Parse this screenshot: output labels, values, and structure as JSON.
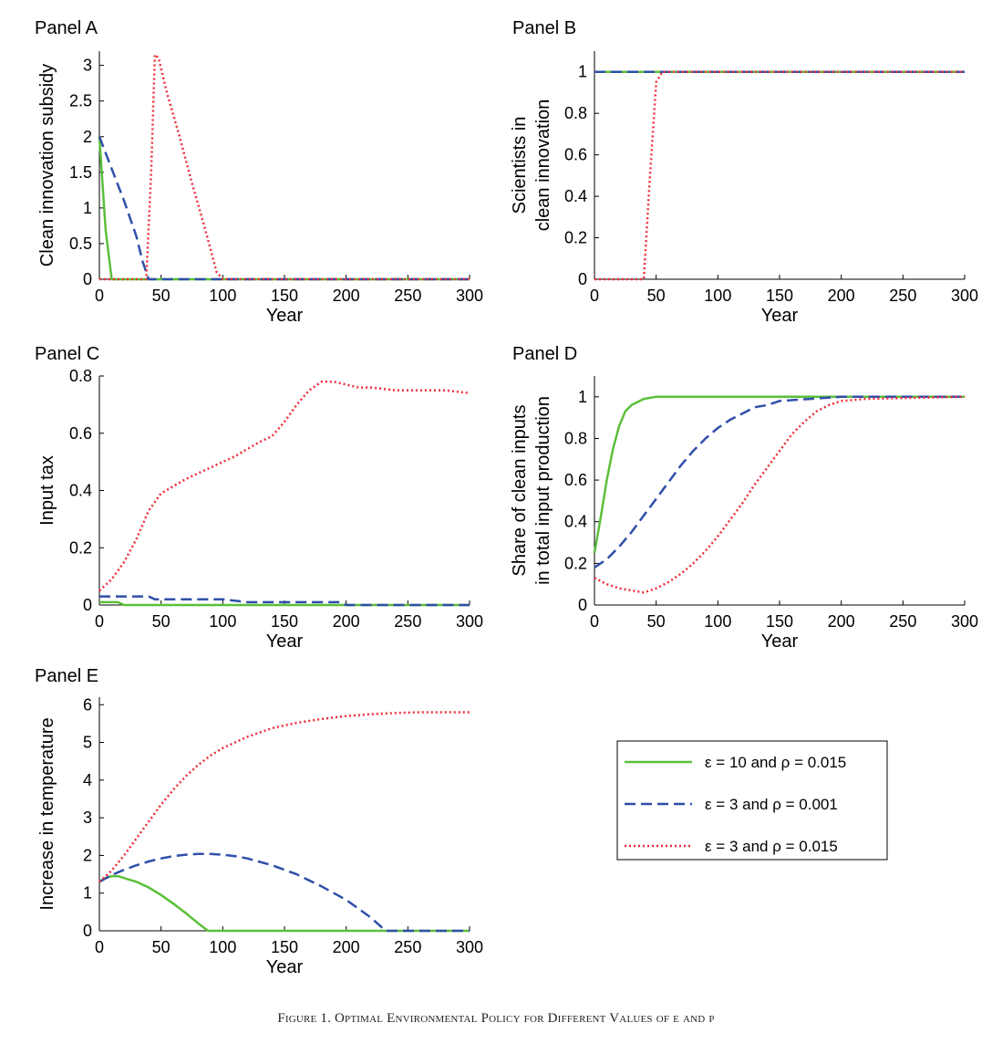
{
  "figure": {
    "caption": "Figure 1. Optimal Environmental Policy for Different Values of ε and ρ"
  },
  "colors": {
    "green": "#5bbf3a",
    "blue": "#2f4fa8",
    "red": "#ee2d3a",
    "axis": "#000000"
  },
  "legend": {
    "entries": [
      {
        "series": "eps10",
        "label": "ε = 10 and ρ = 0.015",
        "style": "solid"
      },
      {
        "series": "eps3_low",
        "label": "ε = 3 and ρ = 0.001",
        "style": "dashed"
      },
      {
        "series": "eps3_high",
        "label": "ε = 3 and ρ = 0.015",
        "style": "dotted"
      }
    ]
  },
  "chart_data": [
    {
      "id": "A",
      "type": "line",
      "title": "Panel A",
      "xlabel": "Year",
      "ylabel": [
        "Clean innovation subsidy"
      ],
      "xlim": [
        0,
        300
      ],
      "ylim": [
        0,
        3.2
      ],
      "xticks": [
        0,
        50,
        100,
        150,
        200,
        250,
        300
      ],
      "yticks": [
        0,
        0.5,
        1,
        1.5,
        2,
        2.5,
        3
      ],
      "yticklabels": [
        "0",
        "0.5",
        "1",
        "1.5",
        "2",
        "2.5",
        "3"
      ],
      "series": [
        {
          "name": "ε = 10 and ρ = 0.015",
          "key": "eps10",
          "x": [
            0,
            5,
            10,
            300
          ],
          "y": [
            2.0,
            0.7,
            0,
            0
          ]
        },
        {
          "name": "ε = 3 and ρ = 0.001",
          "key": "eps3_low",
          "x": [
            0,
            10,
            20,
            30,
            35,
            40,
            300
          ],
          "y": [
            2.0,
            1.55,
            1.1,
            0.6,
            0.25,
            0,
            0
          ]
        },
        {
          "name": "ε = 3 and ρ = 0.015",
          "key": "eps3_high",
          "x": [
            0,
            38,
            42,
            45,
            48,
            55,
            65,
            75,
            85,
            95,
            100,
            300
          ],
          "y": [
            0,
            0,
            1.5,
            3.15,
            3.1,
            2.6,
            2.0,
            1.35,
            0.75,
            0.1,
            0,
            0
          ]
        }
      ]
    },
    {
      "id": "B",
      "type": "line",
      "title": "Panel B",
      "xlabel": "Year",
      "ylabel": [
        "Scientists in",
        "clean innovation"
      ],
      "xlim": [
        0,
        300
      ],
      "ylim": [
        0,
        1.1
      ],
      "xticks": [
        0,
        50,
        100,
        150,
        200,
        250,
        300
      ],
      "yticks": [
        0,
        0.2,
        0.4,
        0.6,
        0.8,
        1
      ],
      "yticklabels": [
        "0",
        "0.2",
        "0.4",
        "0.6",
        "0.8",
        "1"
      ],
      "series": [
        {
          "name": "ε = 10 and ρ = 0.015",
          "key": "eps10",
          "x": [
            0,
            300
          ],
          "y": [
            1,
            1
          ]
        },
        {
          "name": "ε = 3 and ρ = 0.001",
          "key": "eps3_low",
          "x": [
            0,
            300
          ],
          "y": [
            1,
            1
          ]
        },
        {
          "name": "ε = 3 and ρ = 0.015",
          "key": "eps3_high",
          "x": [
            0,
            40,
            45,
            50,
            55,
            300
          ],
          "y": [
            0,
            0,
            0.5,
            0.95,
            1,
            1
          ]
        }
      ]
    },
    {
      "id": "C",
      "type": "line",
      "title": "Panel C",
      "xlabel": "Year",
      "ylabel": [
        "Input tax"
      ],
      "xlim": [
        0,
        300
      ],
      "ylim": [
        0,
        0.8
      ],
      "xticks": [
        0,
        50,
        100,
        150,
        200,
        250,
        300
      ],
      "yticks": [
        0,
        0.2,
        0.4,
        0.6,
        0.8
      ],
      "yticklabels": [
        "0",
        "0.2",
        "0.4",
        "0.6",
        "0.8"
      ],
      "series": [
        {
          "name": "ε = 10 and ρ = 0.015",
          "key": "eps10",
          "x": [
            0,
            15,
            20,
            300
          ],
          "y": [
            0.01,
            0.01,
            0,
            0
          ]
        },
        {
          "name": "ε = 3 and ρ = 0.001",
          "key": "eps3_low",
          "x": [
            0,
            40,
            45,
            100,
            120,
            195,
            200,
            300
          ],
          "y": [
            0.03,
            0.03,
            0.02,
            0.02,
            0.01,
            0.01,
            0,
            0
          ]
        },
        {
          "name": "ε = 3 and ρ = 0.015",
          "key": "eps3_high",
          "x": [
            0,
            10,
            20,
            30,
            40,
            50,
            70,
            90,
            110,
            130,
            140,
            150,
            160,
            170,
            180,
            190,
            200,
            210,
            220,
            240,
            260,
            280,
            300
          ],
          "y": [
            0.05,
            0.09,
            0.15,
            0.23,
            0.33,
            0.39,
            0.44,
            0.48,
            0.52,
            0.57,
            0.59,
            0.64,
            0.7,
            0.75,
            0.78,
            0.78,
            0.77,
            0.76,
            0.76,
            0.75,
            0.75,
            0.75,
            0.74
          ]
        }
      ]
    },
    {
      "id": "D",
      "type": "line",
      "title": "Panel D",
      "xlabel": "Year",
      "ylabel": [
        "Share of clean inputs",
        "in total input production"
      ],
      "xlim": [
        0,
        300
      ],
      "ylim": [
        0,
        1.1
      ],
      "xticks": [
        0,
        50,
        100,
        150,
        200,
        250,
        300
      ],
      "yticks": [
        0,
        0.2,
        0.4,
        0.6,
        0.8,
        1
      ],
      "yticklabels": [
        "0",
        "0.2",
        "0.4",
        "0.6",
        "0.8",
        "1"
      ],
      "series": [
        {
          "name": "ε = 10 and ρ = 0.015",
          "key": "eps10",
          "x": [
            0,
            5,
            10,
            15,
            20,
            25,
            30,
            40,
            50,
            55,
            300
          ],
          "y": [
            0.25,
            0.42,
            0.6,
            0.75,
            0.86,
            0.93,
            0.96,
            0.99,
            1.0,
            1.0,
            1.0
          ]
        },
        {
          "name": "ε = 3 and ρ = 0.001",
          "key": "eps3_low",
          "x": [
            0,
            10,
            20,
            30,
            40,
            50,
            60,
            70,
            80,
            90,
            100,
            110,
            120,
            130,
            140,
            150,
            175,
            200,
            300
          ],
          "y": [
            0.18,
            0.22,
            0.28,
            0.35,
            0.43,
            0.51,
            0.59,
            0.67,
            0.74,
            0.8,
            0.85,
            0.89,
            0.92,
            0.95,
            0.96,
            0.98,
            0.99,
            1.0,
            1.0
          ]
        },
        {
          "name": "ε = 3 and ρ = 0.015",
          "key": "eps3_high",
          "x": [
            0,
            10,
            20,
            30,
            40,
            50,
            60,
            70,
            80,
            90,
            100,
            110,
            120,
            130,
            140,
            150,
            160,
            170,
            180,
            190,
            200,
            220,
            300
          ],
          "y": [
            0.13,
            0.1,
            0.08,
            0.07,
            0.06,
            0.08,
            0.11,
            0.15,
            0.2,
            0.26,
            0.33,
            0.41,
            0.49,
            0.58,
            0.66,
            0.74,
            0.82,
            0.88,
            0.93,
            0.96,
            0.98,
            0.99,
            1.0
          ]
        }
      ]
    },
    {
      "id": "E",
      "type": "line",
      "title": "Panel E",
      "xlabel": "Year",
      "ylabel": [
        "Increase in temperature"
      ],
      "xlim": [
        0,
        300
      ],
      "ylim": [
        0,
        6.2
      ],
      "xticks": [
        0,
        50,
        100,
        150,
        200,
        250,
        300
      ],
      "yticks": [
        0,
        1,
        2,
        3,
        4,
        5,
        6
      ],
      "yticklabels": [
        "0",
        "1",
        "2",
        "3",
        "4",
        "5",
        "6"
      ],
      "series": [
        {
          "name": "ε = 10 and ρ = 0.015",
          "key": "eps10",
          "x": [
            0,
            5,
            10,
            15,
            20,
            30,
            40,
            50,
            60,
            70,
            80,
            88,
            300
          ],
          "y": [
            1.3,
            1.4,
            1.45,
            1.45,
            1.4,
            1.3,
            1.15,
            0.95,
            0.72,
            0.47,
            0.2,
            0,
            0
          ]
        },
        {
          "name": "ε = 3 and ρ = 0.001",
          "key": "eps3_low",
          "x": [
            0,
            10,
            20,
            30,
            40,
            50,
            60,
            70,
            80,
            90,
            100,
            110,
            120,
            140,
            160,
            180,
            200,
            220,
            232,
            300
          ],
          "y": [
            1.3,
            1.48,
            1.62,
            1.74,
            1.84,
            1.92,
            1.98,
            2.02,
            2.04,
            2.04,
            2.02,
            1.98,
            1.92,
            1.74,
            1.5,
            1.18,
            0.82,
            0.35,
            0,
            0
          ]
        },
        {
          "name": "ε = 3 and ρ = 0.015",
          "key": "eps3_high",
          "x": [
            0,
            10,
            20,
            30,
            40,
            50,
            60,
            70,
            80,
            90,
            100,
            110,
            120,
            140,
            160,
            180,
            200,
            220,
            240,
            260,
            280,
            300
          ],
          "y": [
            1.3,
            1.6,
            2.0,
            2.45,
            2.9,
            3.35,
            3.75,
            4.1,
            4.4,
            4.65,
            4.85,
            5.0,
            5.15,
            5.38,
            5.52,
            5.62,
            5.7,
            5.75,
            5.78,
            5.8,
            5.8,
            5.8
          ]
        }
      ]
    }
  ]
}
